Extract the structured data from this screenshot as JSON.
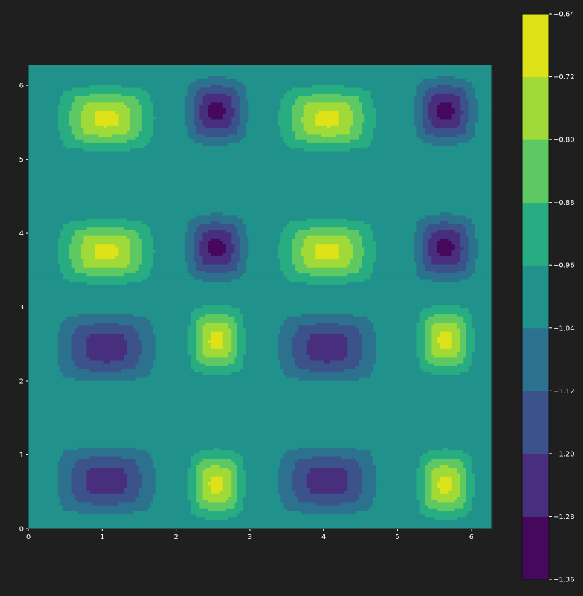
{
  "chart_data": {
    "type": "contourf",
    "title": "",
    "xlabel": "",
    "ylabel": "",
    "xlim": [
      0,
      6.283
    ],
    "ylim": [
      0,
      6.283
    ],
    "x_ticks": [
      "0",
      "1",
      "2",
      "3",
      "4",
      "5",
      "6"
    ],
    "y_ticks": [
      "0",
      "1",
      "2",
      "3",
      "4",
      "5",
      "6"
    ],
    "colorbar": {
      "levels": [
        -1.36,
        -1.28,
        -1.2,
        -1.12,
        -1.04,
        -0.96,
        -0.88,
        -0.8,
        -0.72,
        -0.64
      ],
      "tick_labels": [
        "−1.36",
        "−1.28",
        "−1.20",
        "−1.12",
        "−1.04",
        "−0.96",
        "−0.88",
        "−0.80",
        "−0.72",
        "−0.64"
      ],
      "colors": [
        "#46085c",
        "#472f7d",
        "#3b528b",
        "#2c728e",
        "#21918c",
        "#27ad81",
        "#5ec962",
        "#a0da39",
        "#dde318"
      ]
    },
    "background_level": -1.0,
    "cells": [
      {
        "x": 1.05,
        "y": 5.55,
        "peak": -0.69,
        "rx": 0.85,
        "ry": 0.58
      },
      {
        "x": 4.05,
        "y": 5.55,
        "peak": -0.69,
        "rx": 0.85,
        "ry": 0.58
      },
      {
        "x": 1.05,
        "y": 3.75,
        "peak": -0.69,
        "rx": 0.85,
        "ry": 0.58
      },
      {
        "x": 4.05,
        "y": 3.75,
        "peak": -0.69,
        "rx": 0.85,
        "ry": 0.58
      },
      {
        "x": 2.55,
        "y": 5.65,
        "peak": -1.31,
        "rx": 0.55,
        "ry": 0.6
      },
      {
        "x": 5.65,
        "y": 5.65,
        "peak": -1.31,
        "rx": 0.55,
        "ry": 0.6
      },
      {
        "x": 2.55,
        "y": 3.8,
        "peak": -1.31,
        "rx": 0.55,
        "ry": 0.6
      },
      {
        "x": 5.65,
        "y": 3.8,
        "peak": -1.31,
        "rx": 0.55,
        "ry": 0.6
      },
      {
        "x": 1.05,
        "y": 2.45,
        "peak": -1.26,
        "rx": 0.9,
        "ry": 0.62
      },
      {
        "x": 4.05,
        "y": 2.45,
        "peak": -1.26,
        "rx": 0.9,
        "ry": 0.62
      },
      {
        "x": 1.05,
        "y": 0.65,
        "peak": -1.26,
        "rx": 0.9,
        "ry": 0.62
      },
      {
        "x": 4.05,
        "y": 0.65,
        "peak": -1.26,
        "rx": 0.9,
        "ry": 0.62
      },
      {
        "x": 2.55,
        "y": 2.55,
        "peak": -0.69,
        "rx": 0.5,
        "ry": 0.62
      },
      {
        "x": 5.65,
        "y": 2.55,
        "peak": -0.69,
        "rx": 0.5,
        "ry": 0.62
      },
      {
        "x": 2.55,
        "y": 0.6,
        "peak": -0.69,
        "rx": 0.5,
        "ry": 0.62
      },
      {
        "x": 5.65,
        "y": 0.6,
        "peak": -0.69,
        "rx": 0.5,
        "ry": 0.62
      }
    ]
  }
}
